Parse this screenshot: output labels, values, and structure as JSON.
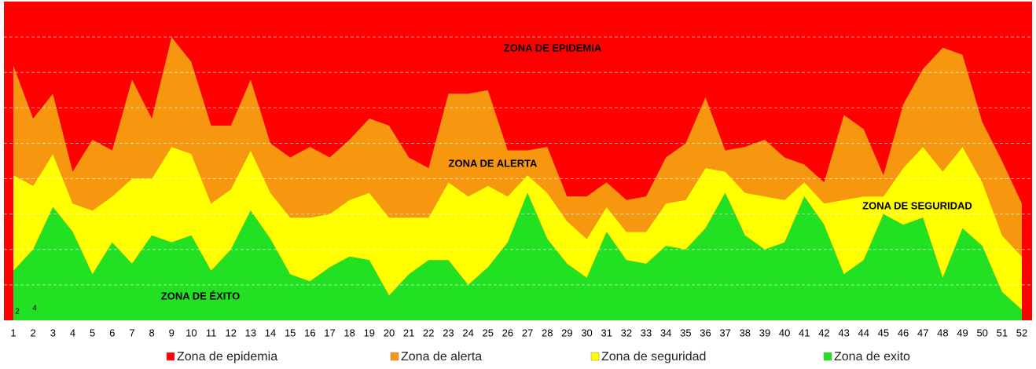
{
  "chart_data": {
    "type": "area",
    "categories": [
      1,
      2,
      3,
      4,
      5,
      6,
      7,
      8,
      9,
      10,
      11,
      12,
      13,
      14,
      15,
      16,
      17,
      18,
      19,
      20,
      21,
      22,
      23,
      24,
      25,
      26,
      27,
      28,
      29,
      30,
      31,
      32,
      33,
      34,
      35,
      36,
      37,
      38,
      39,
      40,
      41,
      42,
      43,
      44,
      45,
      46,
      47,
      48,
      49,
      50,
      51,
      52
    ],
    "stacked": true,
    "series": [
      {
        "name": "Zona de exito",
        "color": "#22e022",
        "values": [
          1.4,
          2.0,
          3.2,
          2.5,
          1.3,
          2.2,
          1.6,
          2.4,
          2.2,
          2.4,
          1.4,
          2.0,
          3.1,
          2.3,
          1.3,
          1.1,
          1.5,
          1.8,
          1.7,
          0.7,
          1.3,
          1.7,
          1.7,
          1.0,
          1.5,
          2.2,
          3.6,
          2.3,
          1.6,
          1.2,
          2.5,
          1.7,
          1.6,
          2.1,
          2.0,
          2.6,
          3.6,
          2.4,
          2.0,
          2.2,
          3.5,
          2.7,
          1.3,
          1.7,
          3.0,
          2.7,
          2.9,
          1.2,
          2.6,
          2.1,
          0.8,
          0.3
        ]
      },
      {
        "name": "Zona de seguridad",
        "color": "#ffff00",
        "values": [
          2.7,
          1.8,
          1.5,
          0.8,
          1.8,
          1.3,
          2.4,
          1.6,
          2.7,
          2.3,
          1.9,
          1.7,
          1.7,
          1.3,
          1.6,
          1.8,
          1.5,
          1.6,
          1.9,
          2.2,
          1.6,
          1.2,
          2.2,
          2.5,
          2.3,
          1.3,
          0.5,
          1.3,
          1.2,
          1.1,
          0.7,
          0.8,
          0.9,
          1.2,
          1.4,
          1.7,
          0.6,
          1.2,
          1.5,
          1.2,
          0.4,
          0.6,
          2.1,
          1.8,
          0.5,
          1.6,
          2.0,
          3.0,
          2.3,
          1.8,
          1.6,
          1.5
        ]
      },
      {
        "name": "Zona de alerta",
        "color": "#f7970f",
        "values": [
          3.1,
          1.9,
          1.7,
          0.9,
          2.0,
          1.3,
          2.8,
          1.7,
          3.1,
          2.6,
          2.2,
          1.8,
          2.0,
          1.4,
          1.7,
          2.0,
          1.6,
          1.7,
          2.1,
          2.6,
          1.7,
          1.4,
          2.5,
          2.9,
          2.7,
          1.3,
          0.7,
          1.3,
          0.7,
          1.2,
          0.7,
          0.9,
          1.0,
          1.3,
          1.6,
          2.0,
          0.6,
          1.3,
          1.6,
          1.2,
          0.5,
          0.6,
          2.4,
          1.9,
          0.6,
          1.8,
          2.2,
          3.5,
          2.6,
          1.7,
          2.1,
          1.5
        ]
      },
      {
        "name": "Zona de epidemia",
        "color": "#ff0000",
        "values": [
          1.8,
          3.3,
          2.6,
          4.8,
          3.9,
          4.2,
          2.2,
          3.3,
          1.0,
          1.7,
          3.5,
          3.5,
          2.2,
          4.0,
          4.4,
          4.1,
          4.4,
          3.9,
          3.3,
          3.5,
          4.4,
          4.7,
          2.6,
          2.6,
          2.5,
          4.2,
          4.2,
          4.1,
          5.5,
          5.5,
          5.1,
          5.6,
          5.5,
          4.4,
          4.0,
          2.7,
          4.2,
          4.1,
          3.9,
          4.4,
          4.6,
          5.1,
          3.2,
          3.6,
          4.9,
          2.9,
          1.9,
          1.3,
          1.5,
          3.4,
          4.5,
          5.7
        ]
      }
    ],
    "legend_order": [
      3,
      2,
      1,
      0
    ],
    "ylim": [
      0,
      9
    ],
    "yticks": [
      1,
      2,
      3,
      4,
      5,
      6,
      7,
      8
    ],
    "grid": true,
    "annotations": [
      "ZONA DE EPIDEMIA",
      "ZONA DE ALERTA",
      "ZONA DE SEGURIDAD",
      "ZONA DE ÉXITO",
      "2",
      "4"
    ]
  }
}
